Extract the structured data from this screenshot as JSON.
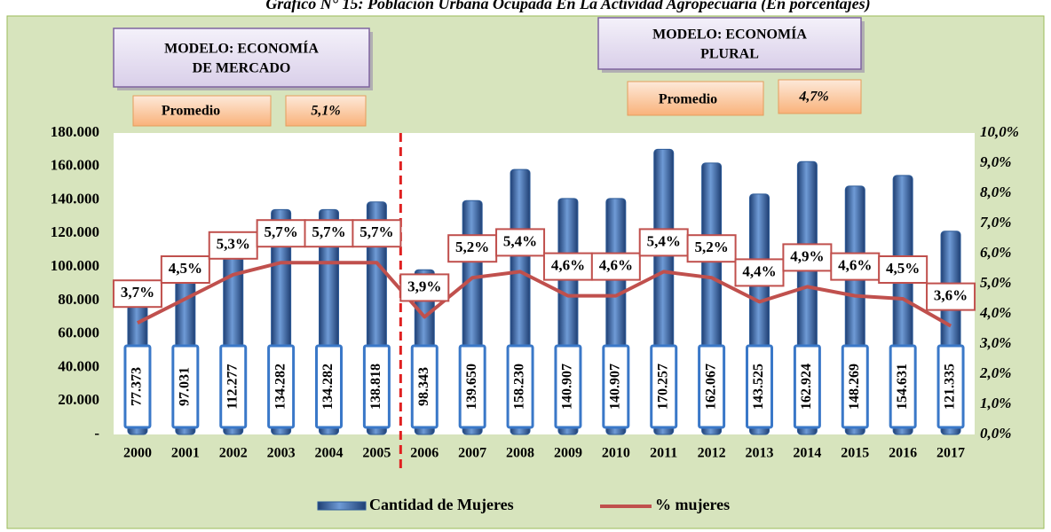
{
  "chart_data": {
    "type": "bar",
    "title": "Gráfico N° 15: Población Urbana Ocupada En La Actividad Agropecuaria (En porcentajes)",
    "annotations": {
      "model_left": [
        "MODELO: ECONOMÍA",
        "DE MERCADO"
      ],
      "avg_left_label": "Promedio",
      "avg_left_value": "5,1%",
      "model_right": [
        "MODELO: ECONOMÍA",
        "PLURAL"
      ],
      "avg_right_label": "Promedio",
      "avg_right_value": "4,7%"
    },
    "categories": [
      "2000",
      "2001",
      "2002",
      "2003",
      "2004",
      "2005",
      "2006",
      "2007",
      "2008",
      "2009",
      "2010",
      "2011",
      "2012",
      "2013",
      "2014",
      "2015",
      "2016",
      "2017"
    ],
    "series": [
      {
        "name": "Cantidad de Mujeres",
        "color": "#2e5c99",
        "values": [
          77373,
          97031,
          112277,
          134282,
          134282,
          138818,
          98343,
          139650,
          158230,
          140907,
          140907,
          170257,
          162067,
          143525,
          162924,
          148269,
          154631,
          121335
        ],
        "value_labels": [
          "77.373",
          "97.031",
          "112.277",
          "134.282",
          "134.282",
          "138.818",
          "98.343",
          "139.650",
          "158.230",
          "140.907",
          "140.907",
          "170.257",
          "162.067",
          "143.525",
          "162.924",
          "148.269",
          "154.631",
          "121.335"
        ]
      },
      {
        "name": "% mujeres",
        "color": "#c0504d",
        "type": "line",
        "axis": "y2",
        "values": [
          3.7,
          4.5,
          5.3,
          5.7,
          5.7,
          5.7,
          3.9,
          5.2,
          5.4,
          4.6,
          4.6,
          5.4,
          5.2,
          4.4,
          4.9,
          4.6,
          4.5,
          3.6
        ],
        "value_labels": [
          "3,7%",
          "4,5%",
          "5,3%",
          "5,7%",
          "5,7%",
          "5,7%",
          "3,9%",
          "5,2%",
          "5,4%",
          "4,6%",
          "4,6%",
          "5,4%",
          "5,2%",
          "4,4%",
          "4,9%",
          "4,6%",
          "4,5%",
          "3,6%"
        ]
      }
    ],
    "ylim": [
      0,
      180000
    ],
    "yticks": [
      {
        "value": 0,
        "label": "-"
      },
      {
        "value": 20000,
        "label": "20.000"
      },
      {
        "value": 40000,
        "label": "40.000"
      },
      {
        "value": 60000,
        "label": "60.000"
      },
      {
        "value": 80000,
        "label": "80.000"
      },
      {
        "value": 100000,
        "label": "100.000"
      },
      {
        "value": 120000,
        "label": "120.000"
      },
      {
        "value": 140000,
        "label": "140.000"
      },
      {
        "value": 160000,
        "label": "160.000"
      },
      {
        "value": 180000,
        "label": "180.000"
      }
    ],
    "y2lim": [
      0,
      10
    ],
    "y2ticks": [
      {
        "value": 0,
        "label": "0,0%"
      },
      {
        "value": 1,
        "label": "1,0%"
      },
      {
        "value": 2,
        "label": "2,0%"
      },
      {
        "value": 3,
        "label": "3,0%"
      },
      {
        "value": 4,
        "label": "4,0%"
      },
      {
        "value": 5,
        "label": "5,0%"
      },
      {
        "value": 6,
        "label": "6,0%"
      },
      {
        "value": 7,
        "label": "7,0%"
      },
      {
        "value": 8,
        "label": "8,0%"
      },
      {
        "value": 9,
        "label": "9,0%"
      },
      {
        "value": 10,
        "label": "10,0%"
      }
    ],
    "grid": false,
    "legend": "bottom"
  }
}
